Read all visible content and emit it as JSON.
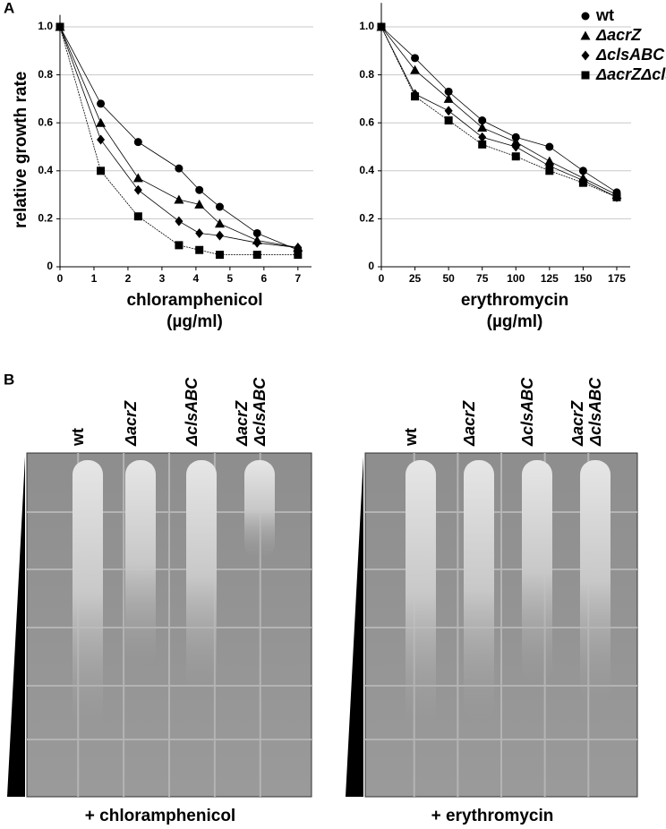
{
  "panel_labels": [
    "A",
    "B"
  ],
  "chart_data": [
    {
      "type": "line",
      "ylabel": "relative growth rate",
      "xlabel": [
        "chloramphenicol",
        "(µg/ml)"
      ],
      "x": [
        0,
        1.2,
        2.3,
        3.5,
        4.1,
        4.7,
        5.8,
        7
      ],
      "xlim": [
        0,
        7.4
      ],
      "xticks": [
        0,
        1,
        2,
        3,
        4,
        5,
        6,
        7
      ],
      "ylim": [
        0,
        1.05
      ],
      "yticks": [
        0,
        0.2,
        0.4,
        0.6,
        0.8,
        {
          "value": 1,
          "label": "1.0"
        }
      ],
      "grid": true,
      "series": [
        {
          "name": "wt",
          "color": "#000000",
          "marker": "circle",
          "values": [
            1,
            0.68,
            0.52,
            0.41,
            0.32,
            0.25,
            0.14,
            0.07
          ]
        },
        {
          "name": "ΔacrZ",
          "color": "#000000",
          "marker": "triangle",
          "values": [
            1,
            0.6,
            0.37,
            0.28,
            0.26,
            0.18,
            0.11,
            0.08
          ]
        },
        {
          "name": "ΔclsABC",
          "color": "#000000",
          "marker": "diamond",
          "values": [
            1,
            0.53,
            0.32,
            0.19,
            0.14,
            0.13,
            0.1,
            0.08
          ]
        },
        {
          "name": "ΔacrZΔclsABC",
          "color": "#000000",
          "marker": "square",
          "values": [
            1,
            0.4,
            0.21,
            0.09,
            0.07,
            0.05,
            0.05,
            0.05
          ]
        }
      ]
    },
    {
      "type": "line",
      "xlabel": [
        "erythromycin",
        "(µg/ml)"
      ],
      "legend": "top-right",
      "x": [
        0,
        25,
        50,
        75,
        100,
        125,
        150,
        175
      ],
      "xlim": [
        0,
        185
      ],
      "xticks": [
        0,
        25,
        50,
        75,
        100,
        125,
        150,
        175
      ],
      "ylim": [
        0,
        1.1
      ],
      "yticks": [
        0,
        0.2,
        0.4,
        0.6,
        0.8,
        {
          "value": 1,
          "label": "1.0"
        }
      ],
      "grid": true,
      "series": [
        {
          "name": "wt",
          "color": "#000000",
          "marker": "circle",
          "values": [
            1,
            0.87,
            0.73,
            0.61,
            0.54,
            0.5,
            0.4,
            0.31
          ]
        },
        {
          "name": "ΔacrZ",
          "color": "#000000",
          "marker": "triangle",
          "values": [
            1,
            0.82,
            0.7,
            0.58,
            0.52,
            0.44,
            0.37,
            0.3
          ]
        },
        {
          "name": "ΔclsABC",
          "color": "#000000",
          "marker": "diamond",
          "values": [
            1,
            0.72,
            0.65,
            0.54,
            0.5,
            0.42,
            0.36,
            0.29
          ]
        },
        {
          "name": "ΔacrZΔclsABC",
          "color": "#000000",
          "marker": "square",
          "values": [
            1,
            0.71,
            0.61,
            0.51,
            0.46,
            0.4,
            0.35,
            0.29
          ]
        }
      ]
    }
  ],
  "plates": [
    {
      "lanes": [
        [
          "wt"
        ],
        [
          "ΔacrZ"
        ],
        [
          "ΔclsABC"
        ],
        [
          "ΔacrZ",
          "ΔclsABC"
        ]
      ],
      "caption": "+ chloramphenicol"
    },
    {
      "lanes": [
        [
          "wt"
        ],
        [
          "ΔacrZ"
        ],
        [
          "ΔclsABC"
        ],
        [
          "ΔacrZ",
          "ΔclsABC"
        ]
      ],
      "caption": "+ erythromycin"
    }
  ]
}
